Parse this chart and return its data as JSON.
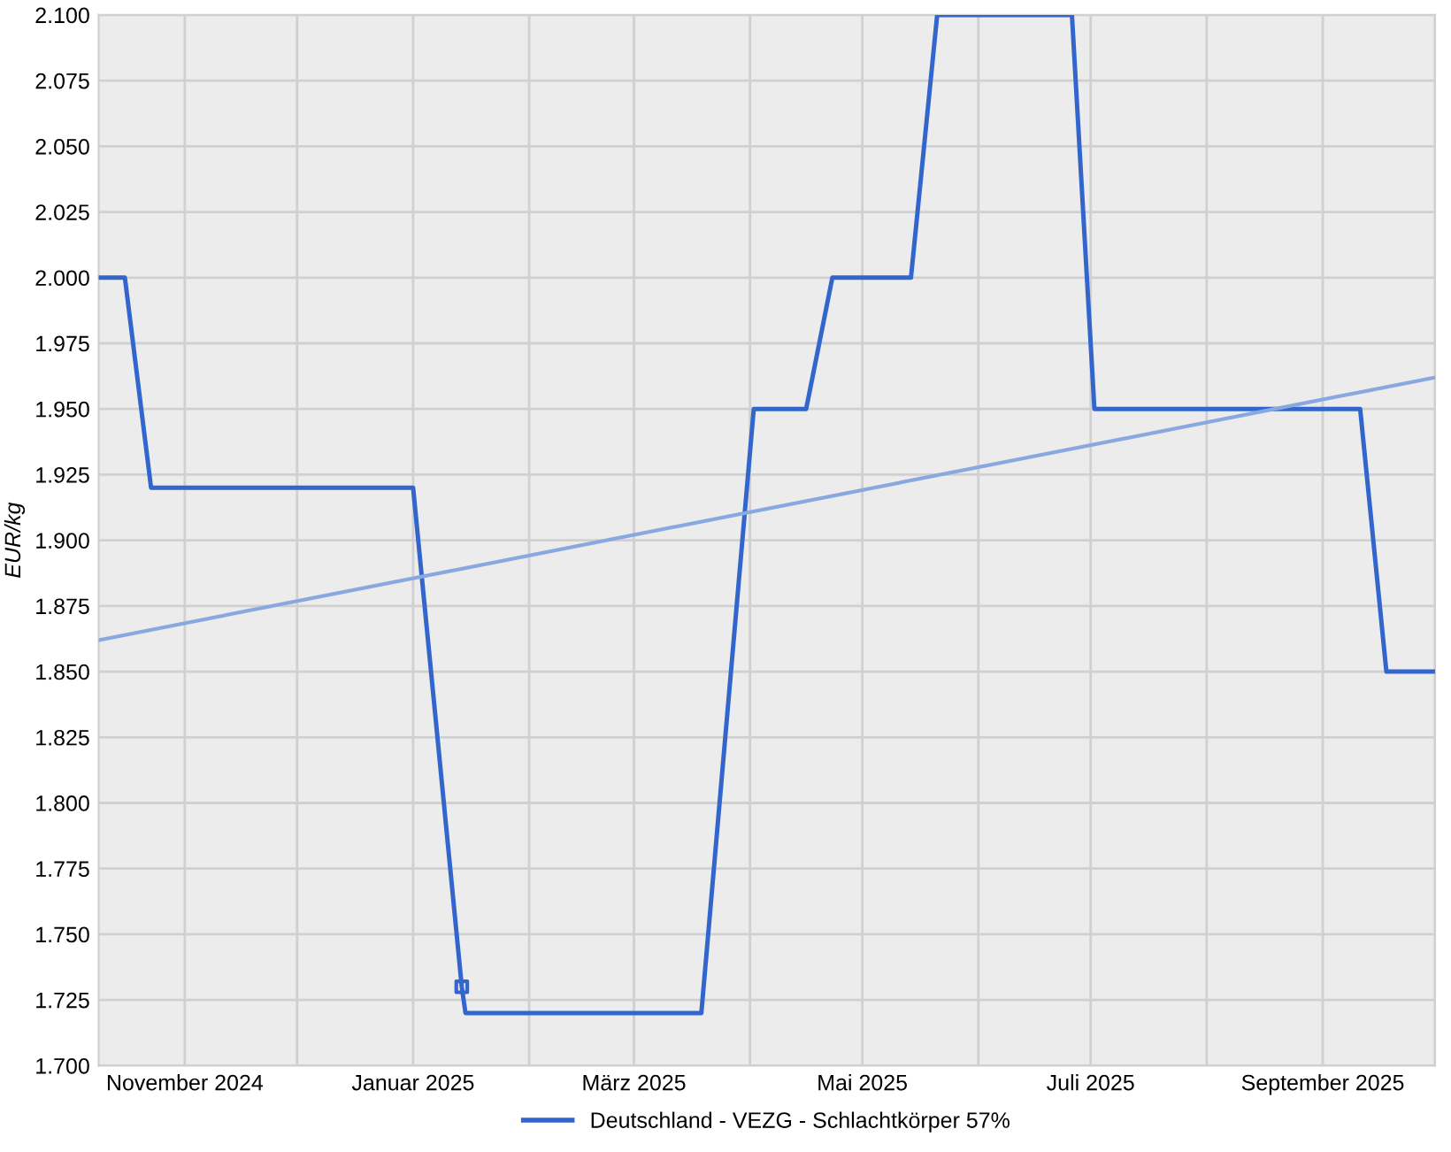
{
  "chart_data": {
    "type": "line",
    "ylabel": "EUR/kg",
    "series": [
      {
        "name": "Deutschland - VEZG - Schlachtkörper 57%",
        "color": "#3366cc",
        "x": [
          "2024-10-09",
          "2024-10-16",
          "2024-10-23",
          "2025-01-01",
          "2025-01-14",
          "2025-01-15",
          "2025-03-19",
          "2025-04-02",
          "2025-04-16",
          "2025-04-23",
          "2025-05-14",
          "2025-05-21",
          "2025-06-26",
          "2025-07-02",
          "2025-09-11",
          "2025-09-18",
          "2025-10-01"
        ],
        "values": [
          2.0,
          2.0,
          1.92,
          1.92,
          1.73,
          1.72,
          1.72,
          1.95,
          1.95,
          2.0,
          2.0,
          2.1,
          2.1,
          1.95,
          1.95,
          1.85,
          1.85
        ]
      },
      {
        "color": "#8aa8e0",
        "x": [
          "2024-10-09",
          "2025-10-01"
        ],
        "values": [
          1.862,
          1.962
        ]
      },
      {
        "color": "#3366cc",
        "type": "scatter",
        "marker": "square",
        "x": [
          "2025-01-14"
        ],
        "values": [
          1.73
        ]
      }
    ],
    "xlim": [
      "2024-10-09",
      "2025-10-01"
    ],
    "xticks": [
      {
        "value": "2024-11-01",
        "label": "November 2024"
      },
      {
        "value": "2024-12-01",
        "label": null
      },
      {
        "value": "2025-01-01",
        "label": "Januar 2025"
      },
      {
        "value": "2025-02-01",
        "label": null
      },
      {
        "value": "2025-03-01",
        "label": "März 2025"
      },
      {
        "value": "2025-04-01",
        "label": null
      },
      {
        "value": "2025-05-01",
        "label": "Mai 2025"
      },
      {
        "value": "2025-06-01",
        "label": null
      },
      {
        "value": "2025-07-01",
        "label": "Juli 2025"
      },
      {
        "value": "2025-08-01",
        "label": null
      },
      {
        "value": "2025-09-01",
        "label": "September 2025"
      },
      {
        "value": "2025-10-01",
        "label": null
      }
    ],
    "ylim": [
      1.7,
      2.1
    ],
    "yticks": [
      {
        "value": 1.7,
        "label": "1.700"
      },
      {
        "value": 1.725,
        "label": "1.725"
      },
      {
        "value": 1.75,
        "label": "1.750"
      },
      {
        "value": 1.775,
        "label": "1.775"
      },
      {
        "value": 1.8,
        "label": "1.800"
      },
      {
        "value": 1.825,
        "label": "1.825"
      },
      {
        "value": 1.85,
        "label": "1.850"
      },
      {
        "value": 1.875,
        "label": "1.875"
      },
      {
        "value": 1.9,
        "label": "1.900"
      },
      {
        "value": 1.925,
        "label": "1.925"
      },
      {
        "value": 1.95,
        "label": "1.950"
      },
      {
        "value": 1.975,
        "label": "1.975"
      },
      {
        "value": 2.0,
        "label": "2.000"
      },
      {
        "value": 2.025,
        "label": "2.025"
      },
      {
        "value": 2.05,
        "label": "2.050"
      },
      {
        "value": 2.075,
        "label": "2.075"
      },
      {
        "value": 2.1,
        "label": "2.100"
      }
    ],
    "grid": true,
    "legend": "bottom"
  }
}
